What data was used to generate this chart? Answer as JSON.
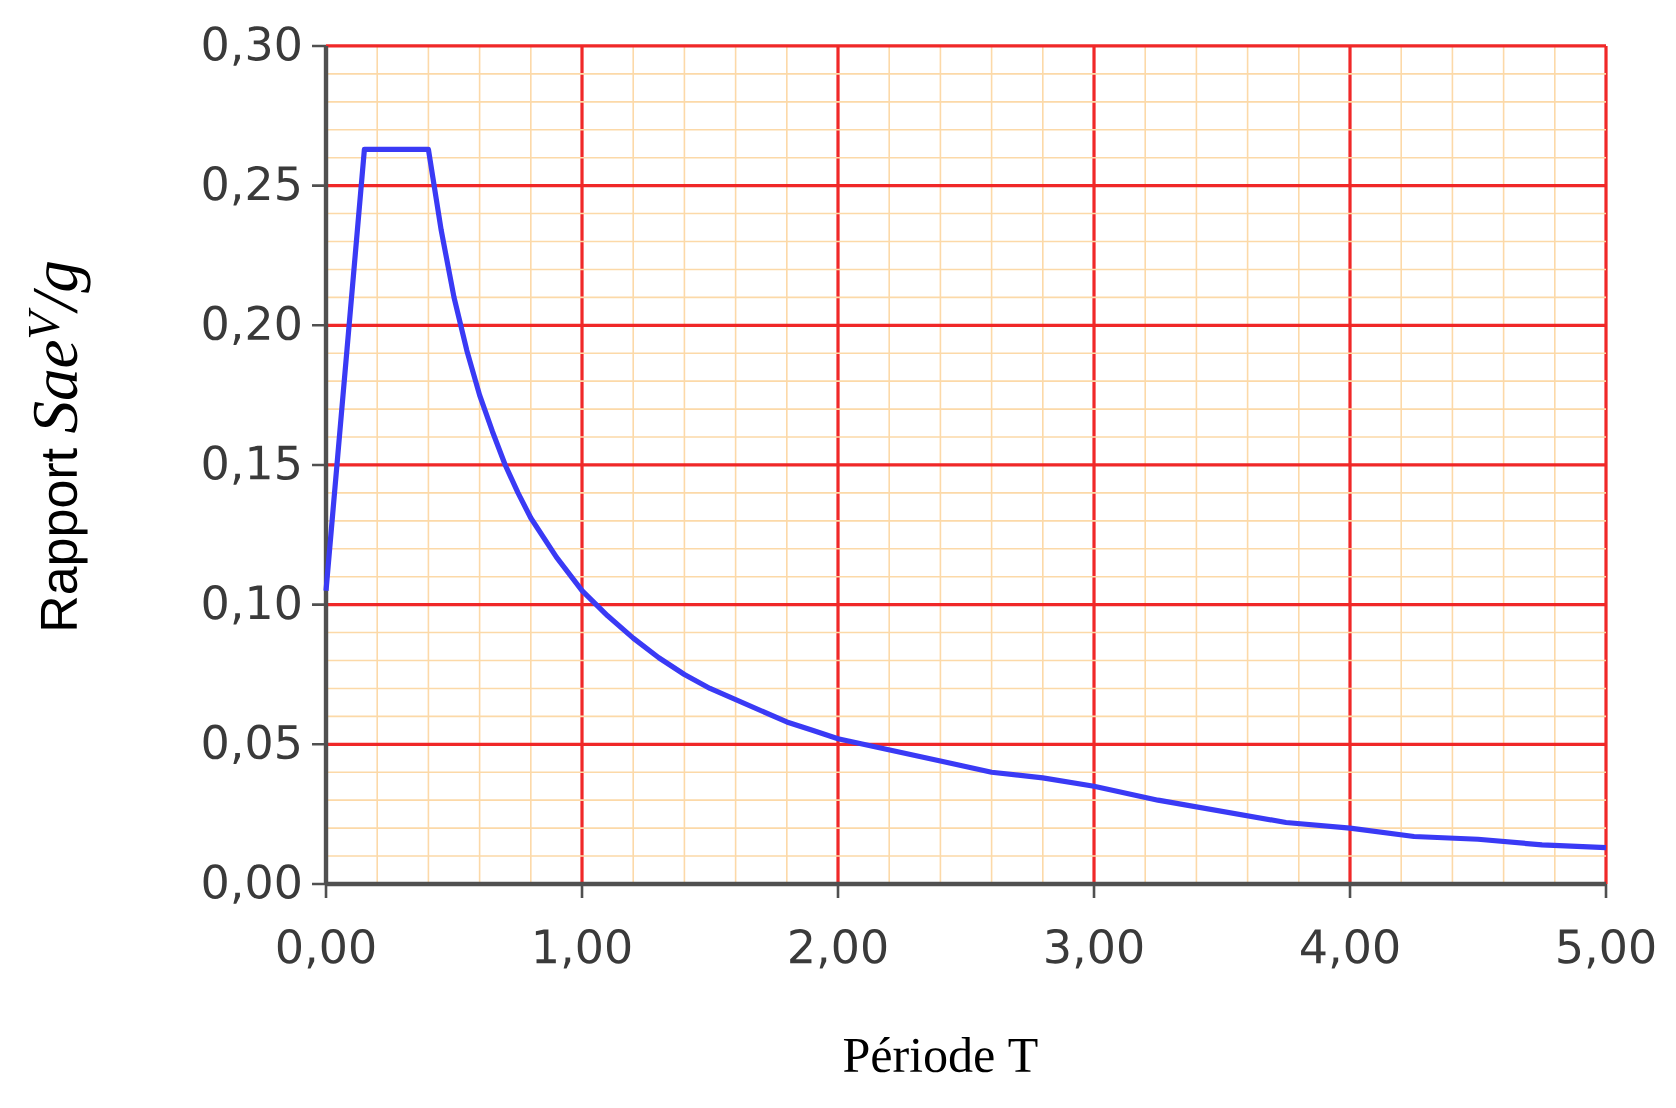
{
  "chart_data": {
    "type": "line",
    "xlabel": "Période T",
    "ylabel": "Rapport *Sae$^{V}$/g*",
    "x": [
      0,
      0.15,
      0.4,
      0.45,
      0.5,
      0.55,
      0.6,
      0.65,
      0.7,
      0.75,
      0.8,
      0.85,
      0.9,
      0.95,
      1.0,
      1.1,
      1.2,
      1.3,
      1.4,
      1.5,
      1.6,
      1.7,
      1.8,
      1.9,
      2.0,
      2.2,
      2.4,
      2.6,
      2.8,
      3.0,
      3.25,
      3.5,
      3.75,
      4.0,
      4.25,
      4.5,
      4.75,
      5.0
    ],
    "values": [
      0.105,
      0.263,
      0.263,
      0.234,
      0.21,
      0.191,
      0.175,
      0.162,
      0.15,
      0.14,
      0.131,
      0.124,
      0.117,
      0.111,
      0.105,
      0.096,
      0.088,
      0.081,
      0.075,
      0.07,
      0.066,
      0.062,
      0.058,
      0.055,
      0.052,
      0.048,
      0.044,
      0.04,
      0.038,
      0.035,
      0.03,
      0.026,
      0.022,
      0.02,
      0.017,
      0.016,
      0.014,
      0.013
    ],
    "color": "#3a3af5",
    "line_style": "solid",
    "xlim": [
      0,
      5
    ],
    "ylim": [
      0,
      0.3
    ],
    "xticks": [
      {
        "value": 0,
        "label": "0,00"
      },
      {
        "value": 0.2,
        "label": null
      },
      {
        "value": 0.4,
        "label": null
      },
      {
        "value": 0.6,
        "label": null
      },
      {
        "value": 0.8,
        "label": null
      },
      {
        "value": 1,
        "label": "1,00"
      },
      {
        "value": 1.2,
        "label": null
      },
      {
        "value": 1.4,
        "label": null
      },
      {
        "value": 1.6,
        "label": null
      },
      {
        "value": 1.8,
        "label": null
      },
      {
        "value": 2,
        "label": "2,00"
      },
      {
        "value": 2.2,
        "label": null
      },
      {
        "value": 2.4,
        "label": null
      },
      {
        "value": 2.6,
        "label": null
      },
      {
        "value": 2.8,
        "label": null
      },
      {
        "value": 3,
        "label": "3,00"
      },
      {
        "value": 3.2,
        "label": null
      },
      {
        "value": 3.4,
        "label": null
      },
      {
        "value": 3.6,
        "label": null
      },
      {
        "value": 3.8,
        "label": null
      },
      {
        "value": 4,
        "label": "4,00"
      },
      {
        "value": 4.2,
        "label": null
      },
      {
        "value": 4.4,
        "label": null
      },
      {
        "value": 4.6,
        "label": null
      },
      {
        "value": 4.8,
        "label": null
      },
      {
        "value": 5,
        "label": "5,00"
      }
    ],
    "yticks": [
      {
        "value": 0,
        "label": "0,00"
      },
      {
        "value": 0.01,
        "label": null
      },
      {
        "value": 0.02,
        "label": null
      },
      {
        "value": 0.03,
        "label": null
      },
      {
        "value": 0.04,
        "label": null
      },
      {
        "value": 0.05,
        "label": "0,05"
      },
      {
        "value": 0.06,
        "label": null
      },
      {
        "value": 0.07,
        "label": null
      },
      {
        "value": 0.08,
        "label": null
      },
      {
        "value": 0.09,
        "label": null
      },
      {
        "value": 0.1,
        "label": "0,10"
      },
      {
        "value": 0.11,
        "label": null
      },
      {
        "value": 0.12,
        "label": null
      },
      {
        "value": 0.13,
        "label": null
      },
      {
        "value": 0.14,
        "label": null
      },
      {
        "value": 0.15,
        "label": "0,15"
      },
      {
        "value": 0.16,
        "label": null
      },
      {
        "value": 0.17,
        "label": null
      },
      {
        "value": 0.18,
        "label": null
      },
      {
        "value": 0.19,
        "label": null
      },
      {
        "value": 0.2,
        "label": "0,20"
      },
      {
        "value": 0.21,
        "label": null
      },
      {
        "value": 0.22,
        "label": null
      },
      {
        "value": 0.23,
        "label": null
      },
      {
        "value": 0.24,
        "label": null
      },
      {
        "value": 0.25,
        "label": "0,25"
      },
      {
        "value": 0.26,
        "label": null
      },
      {
        "value": 0.27,
        "label": null
      },
      {
        "value": 0.28,
        "label": null
      },
      {
        "value": 0.29,
        "label": null
      },
      {
        "value": 0.3,
        "label": "0,30"
      }
    ],
    "grid": true
  }
}
